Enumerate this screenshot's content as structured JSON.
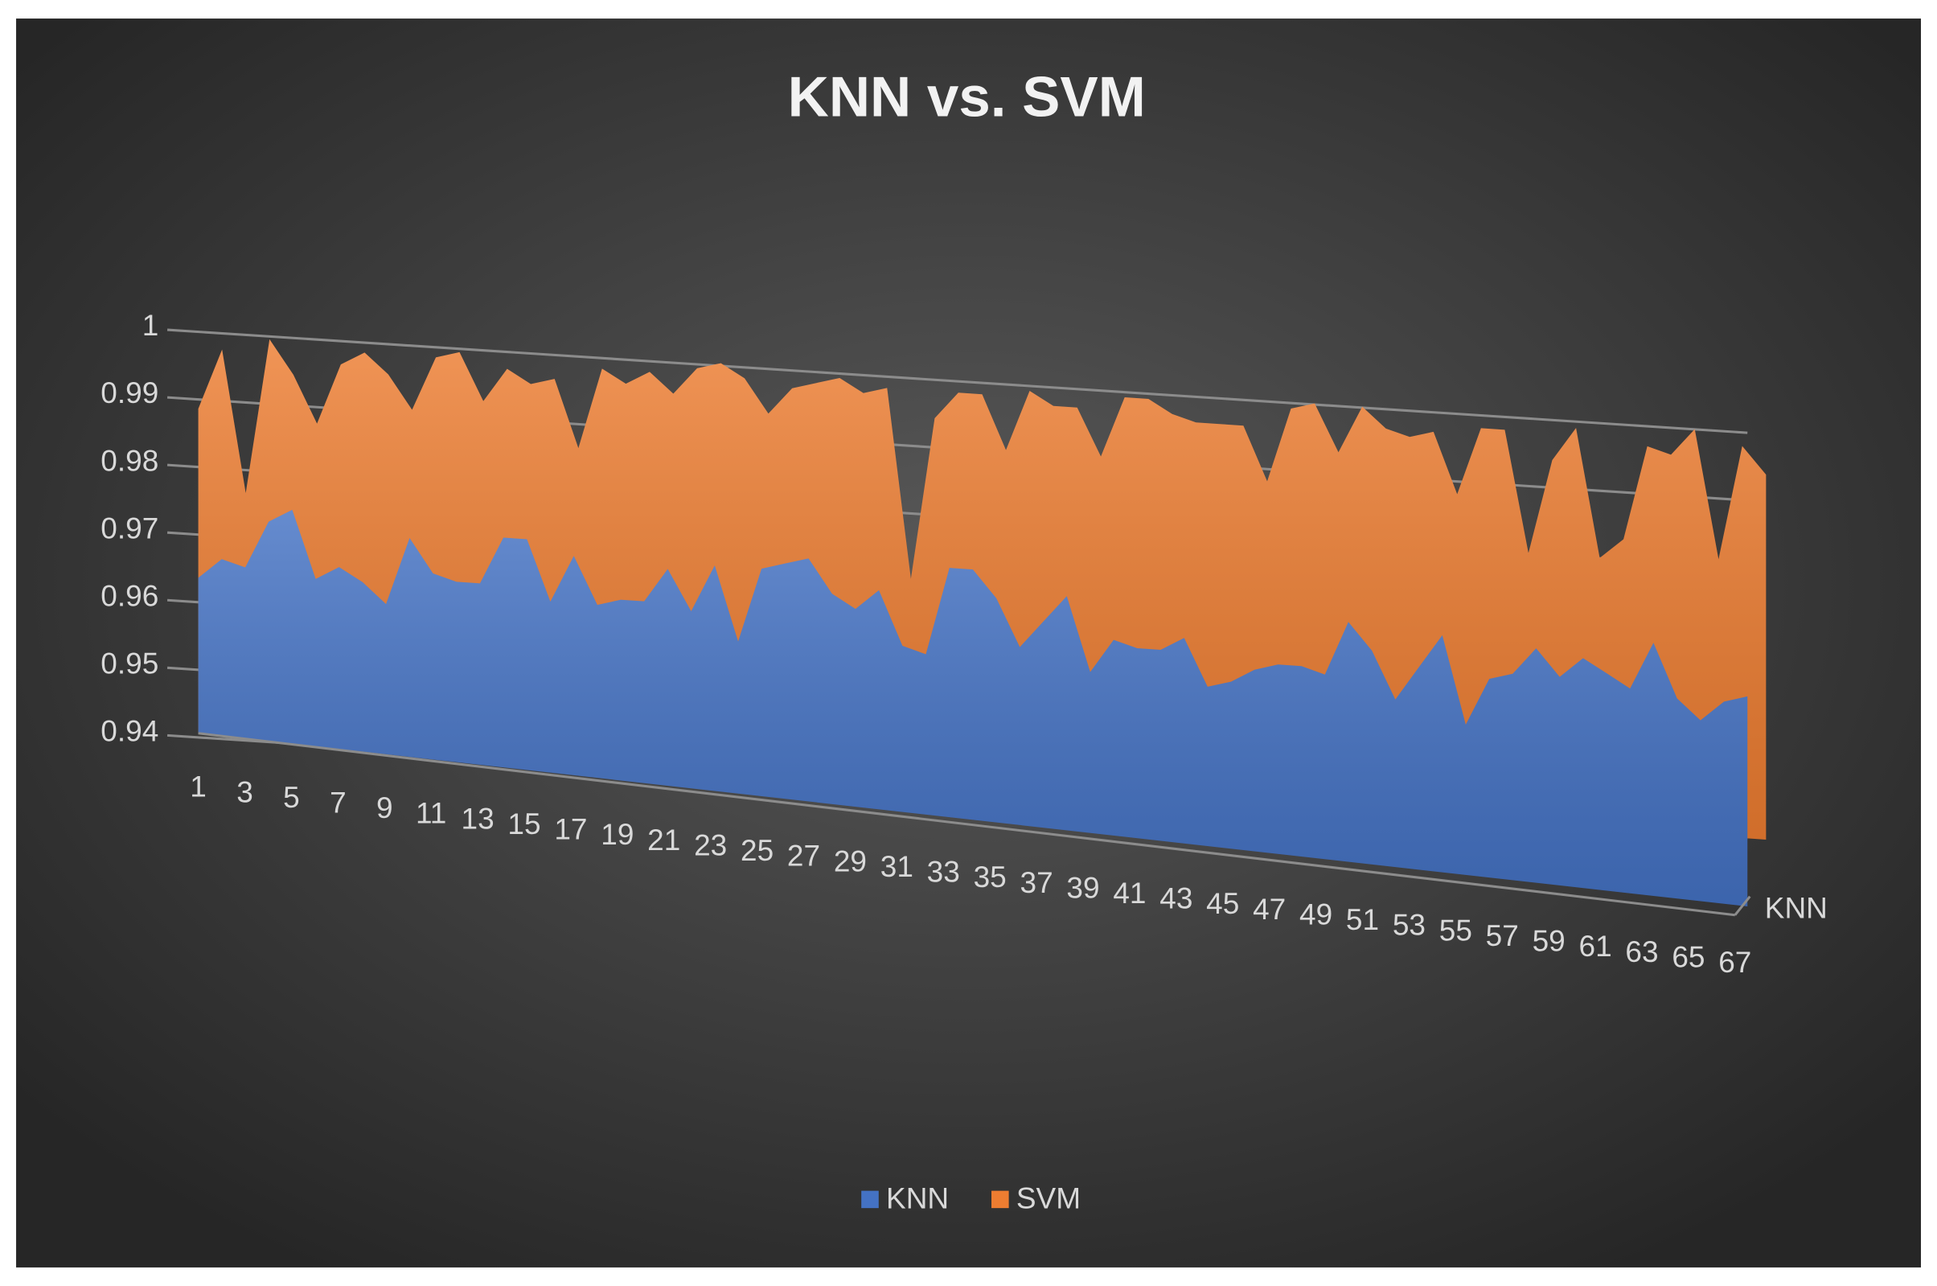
{
  "chart_data": {
    "type": "area3d",
    "title": "KNN vs. SVM",
    "categories": [
      1,
      null,
      3,
      null,
      5,
      null,
      7,
      null,
      9,
      null,
      11,
      null,
      13,
      null,
      15,
      null,
      17,
      null,
      19,
      null,
      21,
      null,
      23,
      null,
      25,
      null,
      27,
      null,
      29,
      null,
      31,
      null,
      33,
      null,
      35,
      null,
      37,
      null,
      39,
      null,
      41,
      null,
      43,
      null,
      45,
      null,
      47,
      null,
      49,
      null,
      51,
      null,
      53,
      null,
      55,
      null,
      57,
      null,
      59,
      null,
      61,
      null,
      63,
      null,
      65,
      null,
      67
    ],
    "series": [
      {
        "name": "KNN",
        "color": "#4472c4",
        "values": [
          0.963,
          0.966,
          0.965,
          0.972,
          0.974,
          0.964,
          0.966,
          0.964,
          0.961,
          0.971,
          0.966,
          0.965,
          0.965,
          0.972,
          0.972,
          0.963,
          0.97,
          0.963,
          0.964,
          0.964,
          0.969,
          0.963,
          0.97,
          0.959,
          0.97,
          0.971,
          0.972,
          0.967,
          0.965,
          0.968,
          0.96,
          0.959,
          0.972,
          0.972,
          0.968,
          0.961,
          0.965,
          0.969,
          0.958,
          0.963,
          0.962,
          0.962,
          0.964,
          0.957,
          0.958,
          0.96,
          0.961,
          0.961,
          0.96,
          0.968,
          0.964,
          0.957,
          0.962,
          0.967,
          0.954,
          0.961,
          0.962,
          0.966,
          0.962,
          0.965,
          0.963,
          0.961,
          0.968,
          0.96,
          0.957,
          0.96,
          0.961
        ]
      },
      {
        "name": "SVM",
        "color": "#ed7d31",
        "values": [
          0.988,
          0.997,
          0.976,
          0.999,
          0.994,
          0.987,
          0.996,
          0.998,
          0.995,
          0.99,
          0.998,
          0.999,
          0.992,
          0.997,
          0.995,
          0.996,
          0.986,
          0.998,
          0.996,
          0.998,
          0.995,
          0.999,
          1.0,
          0.998,
          0.993,
          0.997,
          0.998,
          0.999,
          0.997,
          0.998,
          0.97,
          0.994,
          0.998,
          0.998,
          0.99,
          0.999,
          0.997,
          0.997,
          0.99,
          0.999,
          0.999,
          0.997,
          0.996,
          0.996,
          0.996,
          0.988,
          0.999,
          1.0,
          0.993,
          1.0,
          0.997,
          0.996,
          0.997,
          0.988,
          0.998,
          0.998,
          0.98,
          0.994,
          0.999,
          0.98,
          0.983,
          0.997,
          0.996,
          1.0,
          0.981,
          0.998,
          0.994
        ]
      }
    ],
    "depth_labels": [
      "KNN"
    ],
    "ylim": [
      0.94,
      1
    ],
    "yticks": [
      0.94,
      0.95,
      0.96,
      0.97,
      0.98,
      0.99,
      1
    ],
    "grid": true,
    "legend": "bottom"
  }
}
